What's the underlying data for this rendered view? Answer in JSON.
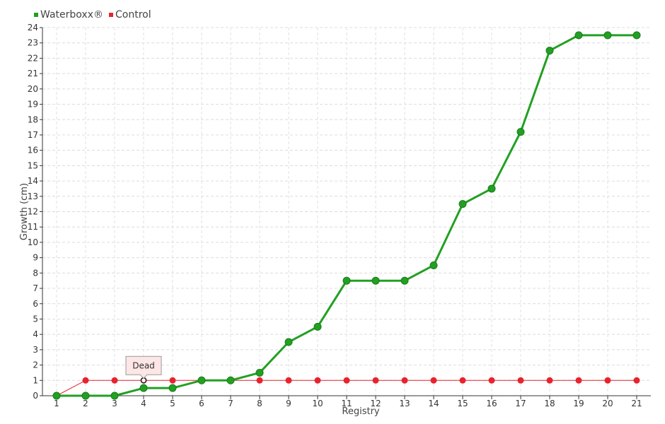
{
  "chart_data": {
    "type": "line",
    "title": "",
    "xlabel": "Registry",
    "ylabel": "Growth (cm)",
    "categories": [
      "1",
      "2",
      "3",
      "4",
      "5",
      "6",
      "7",
      "8",
      "9",
      "10",
      "11",
      "12",
      "13",
      "14",
      "15",
      "16",
      "17",
      "18",
      "19",
      "20",
      "21"
    ],
    "ylim": [
      0,
      24
    ],
    "yticks": [
      0,
      1,
      2,
      3,
      4,
      5,
      6,
      7,
      8,
      9,
      10,
      11,
      12,
      13,
      14,
      15,
      16,
      17,
      18,
      19,
      20,
      21,
      22,
      23,
      24
    ],
    "grid": true,
    "legend_position": "top-left",
    "series": [
      {
        "name": "Waterboxx®",
        "color": "#22a022",
        "values": [
          0,
          0,
          0,
          0.5,
          0.5,
          1,
          1,
          1.5,
          3.5,
          4.5,
          7.5,
          7.5,
          7.5,
          8.5,
          12.5,
          13.5,
          17.2,
          22.5,
          23.5,
          23.5,
          23.5
        ]
      },
      {
        "name": "Control",
        "color": "#e8232e",
        "values": [
          0,
          1,
          1,
          1,
          1,
          1,
          1,
          1,
          1,
          1,
          1,
          1,
          1,
          1,
          1,
          1,
          1,
          1,
          1,
          1,
          1
        ]
      }
    ],
    "annotations": [
      {
        "text": "Dead",
        "series": "Control",
        "category": "4"
      }
    ]
  }
}
